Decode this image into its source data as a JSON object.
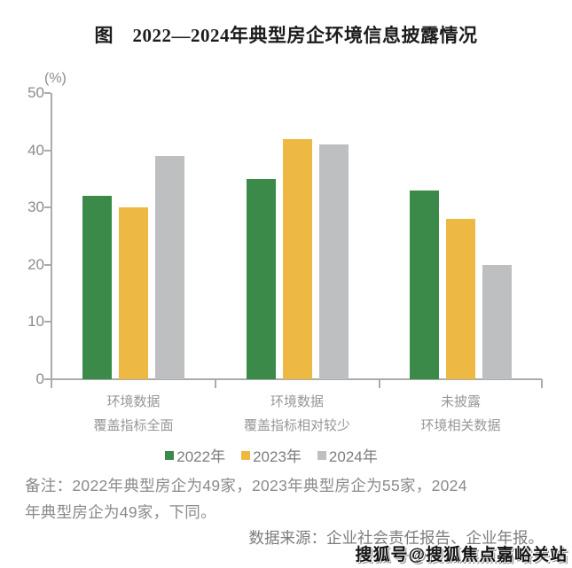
{
  "title": "图　2022—2024年典型房企环境信息披露情况",
  "chart_data": {
    "type": "bar",
    "title": "图　2022—2024年典型房企环境信息披露情况",
    "unit_label": "(%)",
    "ylabel": "(%)",
    "xlabel": "",
    "ylim": [
      0,
      50
    ],
    "yticks": [
      0,
      10,
      20,
      30,
      40,
      50
    ],
    "grid": false,
    "legend_position": "bottom",
    "categories": [
      [
        "环境数据",
        "覆盖指标全面"
      ],
      [
        "环境数据",
        "覆盖指标相对较少"
      ],
      [
        "未披露",
        "环境相关数据"
      ]
    ],
    "series": [
      {
        "name": "2022年",
        "color": "#3b8a4a",
        "values": [
          32,
          35,
          33
        ]
      },
      {
        "name": "2023年",
        "color": "#eeb942",
        "values": [
          30,
          42,
          28
        ]
      },
      {
        "name": "2024年",
        "color": "#bdbfc1",
        "values": [
          39,
          41,
          20
        ]
      }
    ]
  },
  "footnote": {
    "line1": "备注：2022年典型房企为49家，2023年典型房企为55家，2024",
    "line2": "年典型房企为49家，下同。"
  },
  "source": "数据来源：企业社会责任报告、企业年报。",
  "watermark": "搜狐号@搜狐焦点嘉峪关站"
}
